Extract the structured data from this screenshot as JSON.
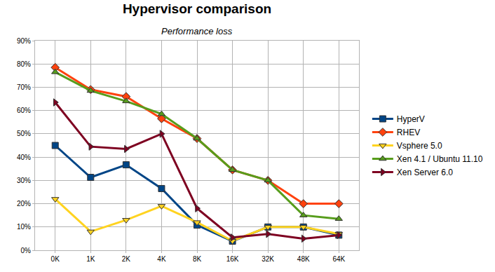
{
  "chart_data": {
    "type": "line",
    "title": "Hypervisor comparison",
    "subtitle": "Performance loss",
    "categories": [
      "0K",
      "1K",
      "2K",
      "4K",
      "8K",
      "16K",
      "32K",
      "48K",
      "64K"
    ],
    "series": [
      {
        "name": "HyperV",
        "color": "#004586",
        "marker": "square",
        "values": [
          45,
          31.3,
          36.7,
          26.5,
          10.8,
          3.9,
          10,
          10,
          6.5
        ]
      },
      {
        "name": "RHEV",
        "color": "#ff420e",
        "marker": "diamond",
        "values": [
          78.5,
          69,
          66,
          56.5,
          48,
          34.5,
          30,
          20,
          20
        ]
      },
      {
        "name": "Vsphere 5.0",
        "color": "#ffd320",
        "marker": "triangle-down",
        "values": [
          22,
          8,
          13,
          19,
          12,
          4,
          10,
          10,
          7
        ]
      },
      {
        "name": "Xen 4.1 / Ubuntu 11.10",
        "color": "#579d1c",
        "marker": "triangle-up",
        "values": [
          76.5,
          68.5,
          64,
          58.5,
          48,
          34.5,
          30,
          15,
          13.5
        ]
      },
      {
        "name": "Xen Server 6.0",
        "color": "#7e0021",
        "marker": "triangle-right",
        "values": [
          63.5,
          44.5,
          43.5,
          50,
          18,
          5.5,
          7,
          5,
          6.5
        ]
      }
    ],
    "ylim": [
      0,
      90
    ],
    "yticks": [
      {
        "value": 0,
        "label": "0%"
      },
      {
        "value": 10,
        "label": "10%"
      },
      {
        "value": 20,
        "label": "20%"
      },
      {
        "value": 30,
        "label": "30%"
      },
      {
        "value": 40,
        "label": "40%"
      },
      {
        "value": 50,
        "label": "50%"
      },
      {
        "value": 60,
        "label": "60%"
      },
      {
        "value": 70,
        "label": "70%"
      },
      {
        "value": 80,
        "label": "80%"
      },
      {
        "value": 90,
        "label": "90%"
      }
    ],
    "grid": true,
    "legend": "right"
  }
}
